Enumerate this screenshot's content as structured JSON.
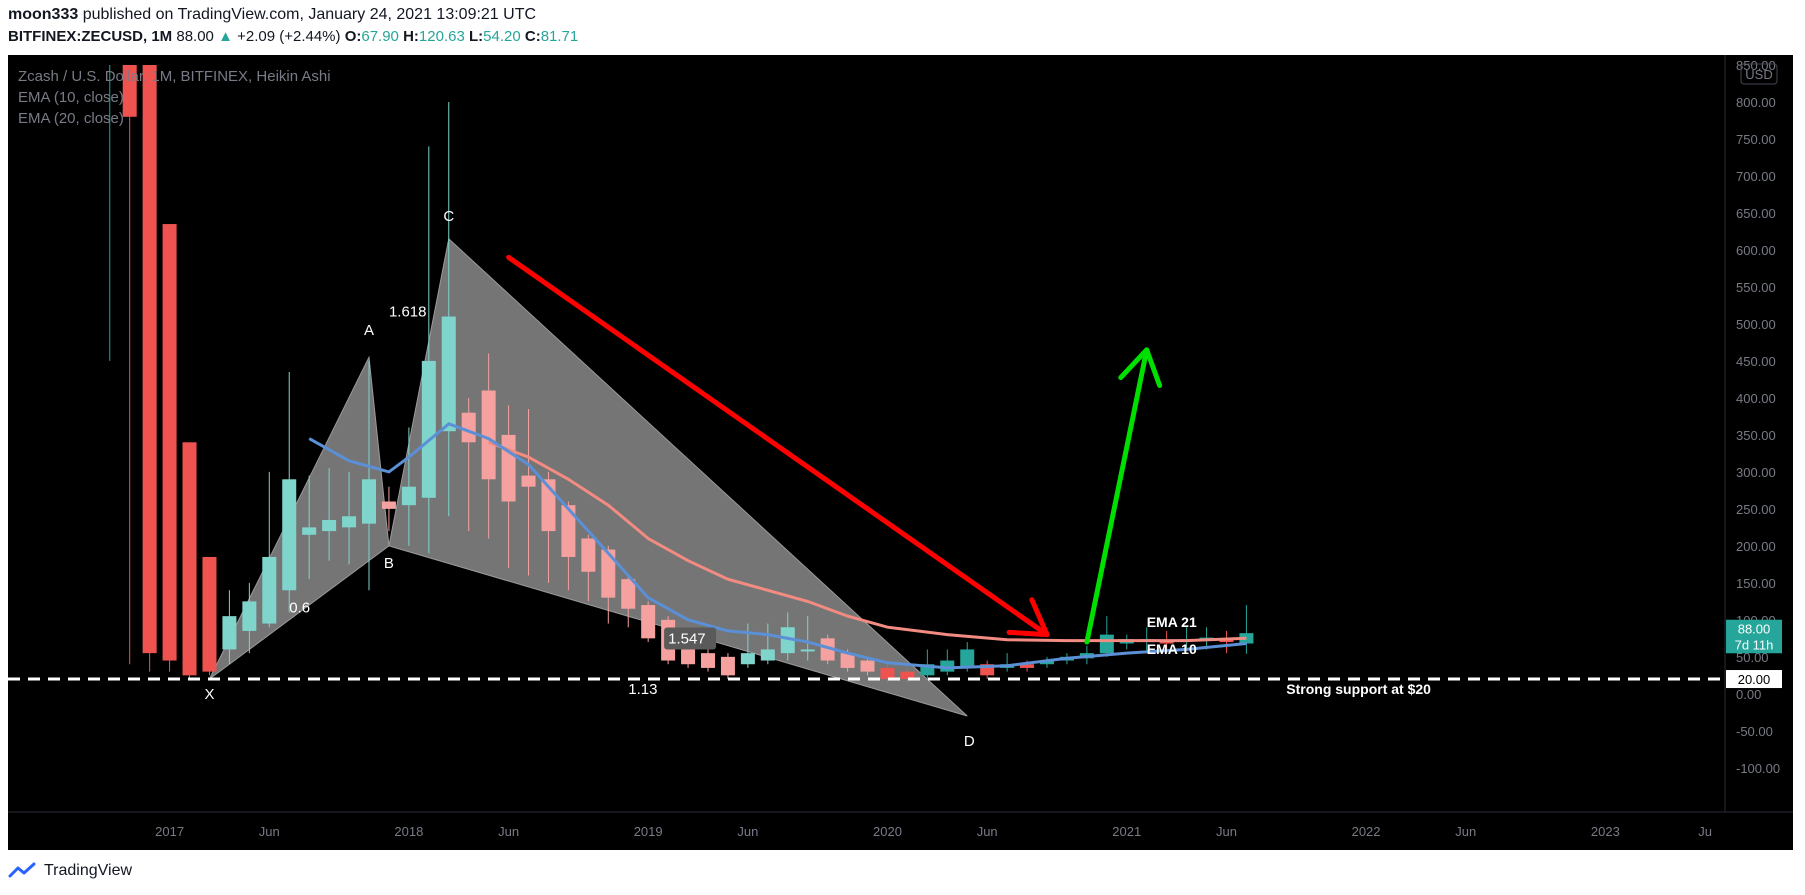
{
  "header": {
    "author": "moon333",
    "published_text": "published on TradingView.com, January 24, 2021 13:09:21 UTC",
    "symbol": "BITFINEX:ZECUSD, 1M",
    "last_price": "88.00",
    "change_arrow": "▲",
    "change": "+2.09 (+2.44%)",
    "o_label": "O:",
    "o_value": "67.90",
    "h_label": "H:",
    "h_value": "120.63",
    "l_label": "L:",
    "l_value": "54.20",
    "c_label": "C:",
    "c_value": "81.71"
  },
  "legend": {
    "line1": "Zcash / U.S. Dollar, 1M, BITFINEX, Heikin Ashi",
    "line2": "EMA (10, close)",
    "line3": "EMA (20, close)"
  },
  "footer": {
    "brand": "TradingView"
  },
  "colors": {
    "background": "#000000",
    "bull": "#26a69a",
    "bull_light": "#7fd4cc",
    "bear": "#ef5350",
    "bear_light": "#f4a1a0",
    "ema10": "#5b8fd6",
    "ema20": "#f28b82",
    "pattern_fill": "#8a8a8a",
    "arrow_down": "#ff0000",
    "arrow_up": "#00e000",
    "axis_text": "#787b86"
  },
  "chart_data": {
    "type": "candlestick",
    "title": "Zcash / U.S. Dollar, 1M, BITFINEX, Heikin Ashi",
    "y_unit": "USD",
    "y_range": [
      -130,
      850
    ],
    "x_range": [
      "2016-06",
      "2023-07"
    ],
    "y_ticks": [
      "850.00",
      "800.00",
      "750.00",
      "700.00",
      "650.00",
      "600.00",
      "550.00",
      "500.00",
      "450.00",
      "400.00",
      "350.00",
      "300.00",
      "250.00",
      "200.00",
      "150.00",
      "100.00",
      "50.00",
      "0.00",
      "-50.00",
      "-100.00"
    ],
    "x_ticks": [
      {
        "t": "2017-01",
        "label": "2017"
      },
      {
        "t": "2017-06",
        "label": "Jun"
      },
      {
        "t": "2018-01",
        "label": "2018"
      },
      {
        "t": "2018-06",
        "label": "Jun"
      },
      {
        "t": "2019-01",
        "label": "2019"
      },
      {
        "t": "2019-06",
        "label": "Jun"
      },
      {
        "t": "2020-01",
        "label": "2020"
      },
      {
        "t": "2020-06",
        "label": "Jun"
      },
      {
        "t": "2021-01",
        "label": "2021"
      },
      {
        "t": "2021-06",
        "label": "Jun"
      },
      {
        "t": "2022-01",
        "label": "2022"
      },
      {
        "t": "2022-06",
        "label": "Jun"
      },
      {
        "t": "2023-01",
        "label": "2023"
      },
      {
        "t": "2023-06",
        "label": "Ju"
      }
    ],
    "candles": [
      {
        "t": "2016-10",
        "o": 850,
        "c": 850,
        "h": 850,
        "l": 450,
        "wick_only": true
      },
      {
        "t": "2016-11",
        "o": 850,
        "c": 780,
        "h": 850,
        "l": 40
      },
      {
        "t": "2016-12",
        "o": 850,
        "c": 55,
        "h": 850,
        "l": 30
      },
      {
        "t": "2017-01",
        "o": 635,
        "c": 45,
        "h": 635,
        "l": 30
      },
      {
        "t": "2017-02",
        "o": 340,
        "c": 25,
        "h": 340,
        "l": 20
      },
      {
        "t": "2017-03",
        "o": 185,
        "c": 30,
        "h": 185,
        "l": 25
      },
      {
        "t": "2017-04",
        "o": 60,
        "c": 105,
        "h": 140,
        "l": 40
      },
      {
        "t": "2017-05",
        "o": 85,
        "c": 125,
        "h": 150,
        "l": 55
      },
      {
        "t": "2017-06",
        "o": 95,
        "c": 185,
        "h": 300,
        "l": 90
      },
      {
        "t": "2017-07",
        "o": 140,
        "c": 290,
        "h": 435,
        "l": 110
      },
      {
        "t": "2017-08",
        "o": 215,
        "c": 225,
        "h": 295,
        "l": 155
      },
      {
        "t": "2017-09",
        "o": 220,
        "c": 235,
        "h": 305,
        "l": 180
      },
      {
        "t": "2017-10",
        "o": 225,
        "c": 240,
        "h": 300,
        "l": 175
      },
      {
        "t": "2017-11",
        "o": 230,
        "c": 290,
        "h": 450,
        "l": 140
      },
      {
        "t": "2017-12",
        "o": 260,
        "c": 250,
        "h": 280,
        "l": 220
      },
      {
        "t": "2018-01",
        "o": 255,
        "c": 280,
        "h": 360,
        "l": 200
      },
      {
        "t": "2018-02",
        "o": 265,
        "c": 450,
        "h": 740,
        "l": 190
      },
      {
        "t": "2018-03",
        "o": 355,
        "c": 510,
        "h": 800,
        "l": 240
      },
      {
        "t": "2018-04",
        "o": 380,
        "c": 340,
        "h": 400,
        "l": 220
      },
      {
        "t": "2018-05",
        "o": 410,
        "c": 290,
        "h": 460,
        "l": 210
      },
      {
        "t": "2018-06",
        "o": 350,
        "c": 260,
        "h": 390,
        "l": 170
      },
      {
        "t": "2018-07",
        "o": 295,
        "c": 280,
        "h": 385,
        "l": 160
      },
      {
        "t": "2018-08",
        "o": 290,
        "c": 220,
        "h": 300,
        "l": 150
      },
      {
        "t": "2018-09",
        "o": 255,
        "c": 185,
        "h": 260,
        "l": 140
      },
      {
        "t": "2018-10",
        "o": 210,
        "c": 165,
        "h": 215,
        "l": 125
      },
      {
        "t": "2018-11",
        "o": 195,
        "c": 130,
        "h": 200,
        "l": 95
      },
      {
        "t": "2018-12",
        "o": 155,
        "c": 115,
        "h": 160,
        "l": 90
      },
      {
        "t": "2019-01",
        "o": 120,
        "c": 75,
        "h": 125,
        "l": 70
      },
      {
        "t": "2019-02",
        "o": 100,
        "c": 45,
        "h": 105,
        "l": 40
      },
      {
        "t": "2019-03",
        "o": 60,
        "c": 40,
        "h": 70,
        "l": 35
      },
      {
        "t": "2019-04",
        "o": 55,
        "c": 35,
        "h": 70,
        "l": 30
      },
      {
        "t": "2019-05",
        "o": 50,
        "c": 25,
        "h": 55,
        "l": 20
      },
      {
        "t": "2019-06",
        "o": 40,
        "c": 55,
        "h": 95,
        "l": 35
      },
      {
        "t": "2019-07",
        "o": 45,
        "c": 60,
        "h": 95,
        "l": 40
      },
      {
        "t": "2019-08",
        "o": 55,
        "c": 90,
        "h": 110,
        "l": 45
      },
      {
        "t": "2019-09",
        "o": 60,
        "c": 60,
        "h": 105,
        "l": 45
      },
      {
        "t": "2019-10",
        "o": 75,
        "c": 45,
        "h": 80,
        "l": 40
      },
      {
        "t": "2019-11",
        "o": 55,
        "c": 35,
        "h": 60,
        "l": 30
      },
      {
        "t": "2019-12",
        "o": 45,
        "c": 30,
        "h": 50,
        "l": 25
      },
      {
        "t": "2020-01",
        "o": 35,
        "c": 20,
        "h": 40,
        "l": 15
      },
      {
        "t": "2020-02",
        "o": 30,
        "c": 20,
        "h": 35,
        "l": 15
      },
      {
        "t": "2020-03",
        "o": 25,
        "c": 40,
        "h": 60,
        "l": 20
      },
      {
        "t": "2020-04",
        "o": 30,
        "c": 45,
        "h": 60,
        "l": 25
      },
      {
        "t": "2020-05",
        "o": 35,
        "c": 60,
        "h": 70,
        "l": 30
      },
      {
        "t": "2020-06",
        "o": 40,
        "c": 25,
        "h": 45,
        "l": 20
      },
      {
        "t": "2020-07",
        "o": 35,
        "c": 40,
        "h": 55,
        "l": 30
      },
      {
        "t": "2020-08",
        "o": 40,
        "c": 35,
        "h": 45,
        "l": 30
      },
      {
        "t": "2020-09",
        "o": 40,
        "c": 45,
        "h": 50,
        "l": 35
      },
      {
        "t": "2020-10",
        "o": 45,
        "c": 50,
        "h": 55,
        "l": 40
      },
      {
        "t": "2020-11",
        "o": 48,
        "c": 55,
        "h": 65,
        "l": 40
      },
      {
        "t": "2020-12",
        "o": 55,
        "c": 80,
        "h": 105,
        "l": 50
      },
      {
        "t": "2021-01",
        "o": 68,
        "c": 74,
        "h": 80,
        "l": 60
      },
      {
        "t": "2021-02",
        "o": 70,
        "c": 74,
        "h": 90,
        "l": 55
      },
      {
        "t": "2021-03",
        "o": 72,
        "c": 68,
        "h": 85,
        "l": 55
      },
      {
        "t": "2021-04",
        "o": 72,
        "c": 74,
        "h": 90,
        "l": 58
      },
      {
        "t": "2021-05",
        "o": 72,
        "c": 76,
        "h": 90,
        "l": 60
      },
      {
        "t": "2021-06",
        "o": 75,
        "c": 70,
        "h": 85,
        "l": 55
      },
      {
        "t": "2021-07",
        "o": 68,
        "c": 82,
        "h": 120,
        "l": 54
      }
    ],
    "ema10": [
      {
        "t": "2017-08",
        "v": 345
      },
      {
        "t": "2017-10",
        "v": 315
      },
      {
        "t": "2017-12",
        "v": 300
      },
      {
        "t": "2018-01",
        "v": 320
      },
      {
        "t": "2018-03",
        "v": 365
      },
      {
        "t": "2018-05",
        "v": 345
      },
      {
        "t": "2018-07",
        "v": 310
      },
      {
        "t": "2018-09",
        "v": 250
      },
      {
        "t": "2018-11",
        "v": 190
      },
      {
        "t": "2019-01",
        "v": 130
      },
      {
        "t": "2019-03",
        "v": 100
      },
      {
        "t": "2019-05",
        "v": 85
      },
      {
        "t": "2019-07",
        "v": 80
      },
      {
        "t": "2019-09",
        "v": 70
      },
      {
        "t": "2019-11",
        "v": 55
      },
      {
        "t": "2020-01",
        "v": 42
      },
      {
        "t": "2020-04",
        "v": 35
      },
      {
        "t": "2020-07",
        "v": 38
      },
      {
        "t": "2020-10",
        "v": 48
      },
      {
        "t": "2021-01",
        "v": 55
      },
      {
        "t": "2021-04",
        "v": 60
      },
      {
        "t": "2021-07",
        "v": 68
      }
    ],
    "ema20": [
      {
        "t": "2018-05",
        "v": 340
      },
      {
        "t": "2018-07",
        "v": 320
      },
      {
        "t": "2018-09",
        "v": 290
      },
      {
        "t": "2018-11",
        "v": 255
      },
      {
        "t": "2019-01",
        "v": 210
      },
      {
        "t": "2019-03",
        "v": 180
      },
      {
        "t": "2019-05",
        "v": 155
      },
      {
        "t": "2019-07",
        "v": 140
      },
      {
        "t": "2019-09",
        "v": 125
      },
      {
        "t": "2019-11",
        "v": 105
      },
      {
        "t": "2020-01",
        "v": 90
      },
      {
        "t": "2020-04",
        "v": 80
      },
      {
        "t": "2020-07",
        "v": 73
      },
      {
        "t": "2020-10",
        "v": 72
      },
      {
        "t": "2021-01",
        "v": 72
      },
      {
        "t": "2021-04",
        "v": 72
      },
      {
        "t": "2021-07",
        "v": 75
      }
    ],
    "harmonic_points": [
      {
        "label": "X",
        "t": "2017-03",
        "v": 20
      },
      {
        "label": "A",
        "t": "2017-11",
        "v": 455
      },
      {
        "label": "B",
        "t": "2017-12",
        "v": 200
      },
      {
        "label": "C",
        "t": "2018-03",
        "v": 615
      },
      {
        "label": "D",
        "t": "2020-05",
        "v": -30
      }
    ],
    "ratio_labels": [
      {
        "text": "0.6",
        "t": "2017-07",
        "v": 110
      },
      {
        "text": "1.618",
        "t": "2017-12",
        "v": 510
      },
      {
        "text": "1.547",
        "t": "2019-02",
        "v": 68
      },
      {
        "text": "1.13",
        "t": "2018-12",
        "v": 0
      }
    ],
    "support_level": 20,
    "arrows": [
      {
        "id": "down",
        "from": {
          "t": "2018-06",
          "v": 590
        },
        "to": {
          "t": "2020-09",
          "v": 80
        }
      },
      {
        "id": "up",
        "from": {
          "t": "2020-11",
          "v": 70
        },
        "to": {
          "t": "2021-02",
          "v": 465
        }
      }
    ],
    "annotations": [
      {
        "text": "EMA 21",
        "t": "2021-02",
        "v": 90
      },
      {
        "text": "EMA 10",
        "t": "2021-02",
        "v": 54
      },
      {
        "text": "Strong support at $20",
        "t": "2021-09",
        "v": 0
      }
    ],
    "price_badges": [
      {
        "text": "88.00",
        "v": 88,
        "color": "#26a69a"
      },
      {
        "text": "7d 11h",
        "v": 67,
        "color": "#26a69a"
      },
      {
        "text": "20.00",
        "v": 20,
        "color": "#ffffff"
      }
    ],
    "axis_unit_label": "USD"
  }
}
